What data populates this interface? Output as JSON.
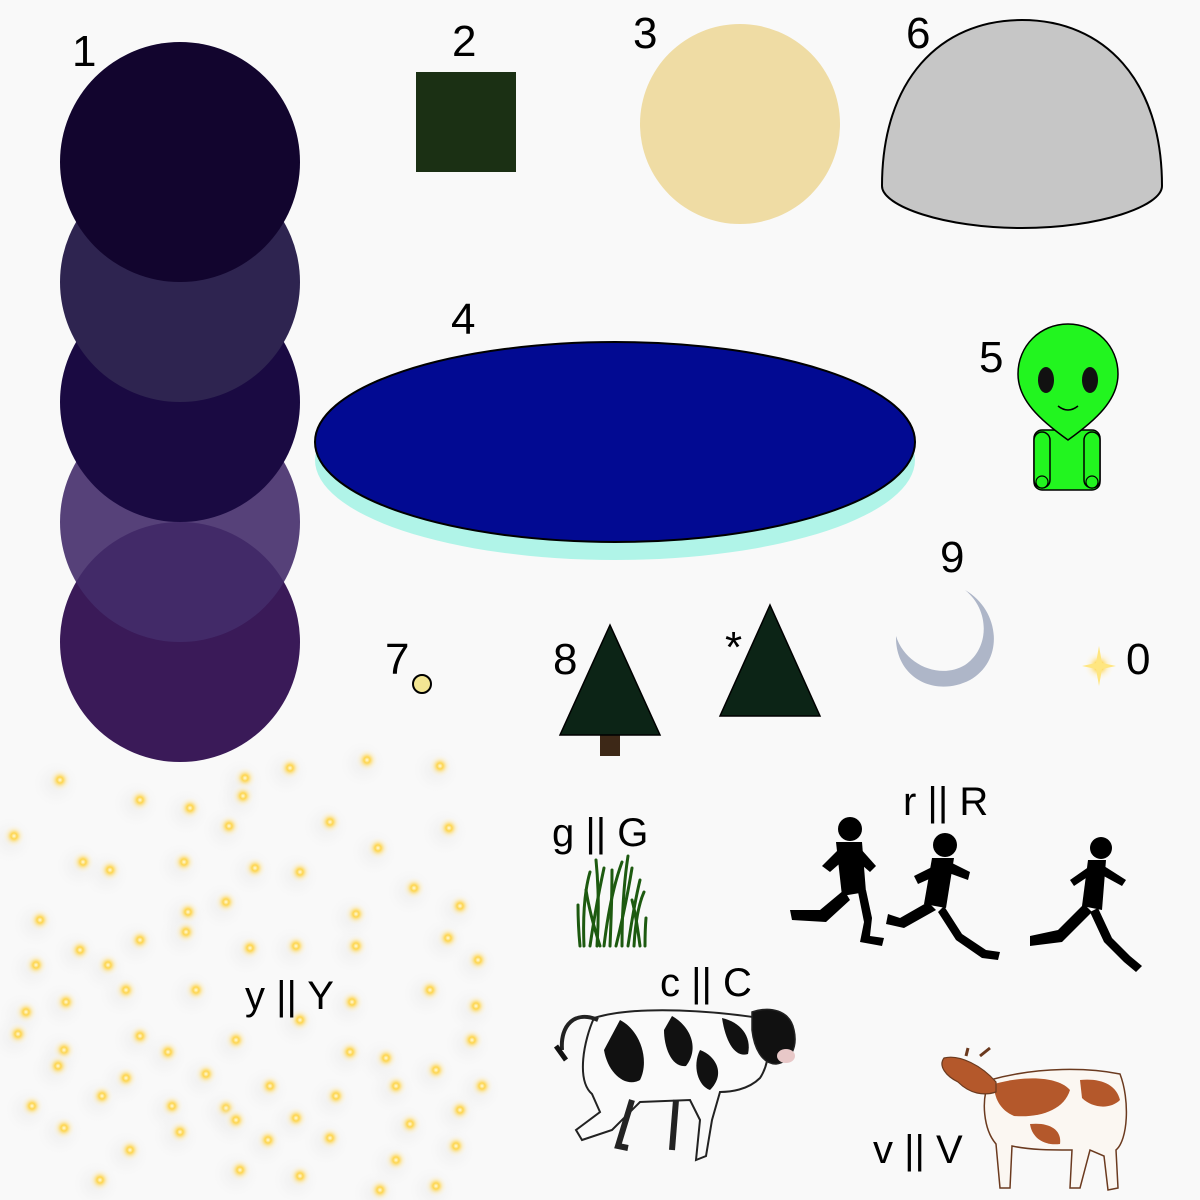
{
  "labels": {
    "one": "1",
    "two": "2",
    "three": "3",
    "four": "4",
    "five": "5",
    "six": "6",
    "seven": "7",
    "eight": "8",
    "nine": "9",
    "zero": "0",
    "star": "*"
  },
  "keys": {
    "g": "g || G",
    "r": "r || R",
    "y": "y || Y",
    "c": "c || C",
    "v": "v || V"
  },
  "colors": {
    "background": "#f9f9f9",
    "circle_stack": [
      "#12052e",
      "#2e2450",
      "#1a0a42",
      "#442c6a",
      "#3a1a58"
    ],
    "square": "#1b3014",
    "sun_disc": "#efdca4",
    "dome": "#c6c6c6",
    "lake": "#020a92",
    "lake_shadow": "#b0f4e8",
    "alien": "#22f51f",
    "moon": "#aeb6c8",
    "tree": "#0c2416",
    "star_glow": "#ffd23c"
  },
  "icons": {
    "alien": "alien-icon",
    "moon": "crescent-moon-icon",
    "tree": "pine-tree-icon",
    "grass": "grass-icon",
    "runner": "runner-icon",
    "cow": "cow-icon",
    "sparkle": "sparkle-icon"
  }
}
